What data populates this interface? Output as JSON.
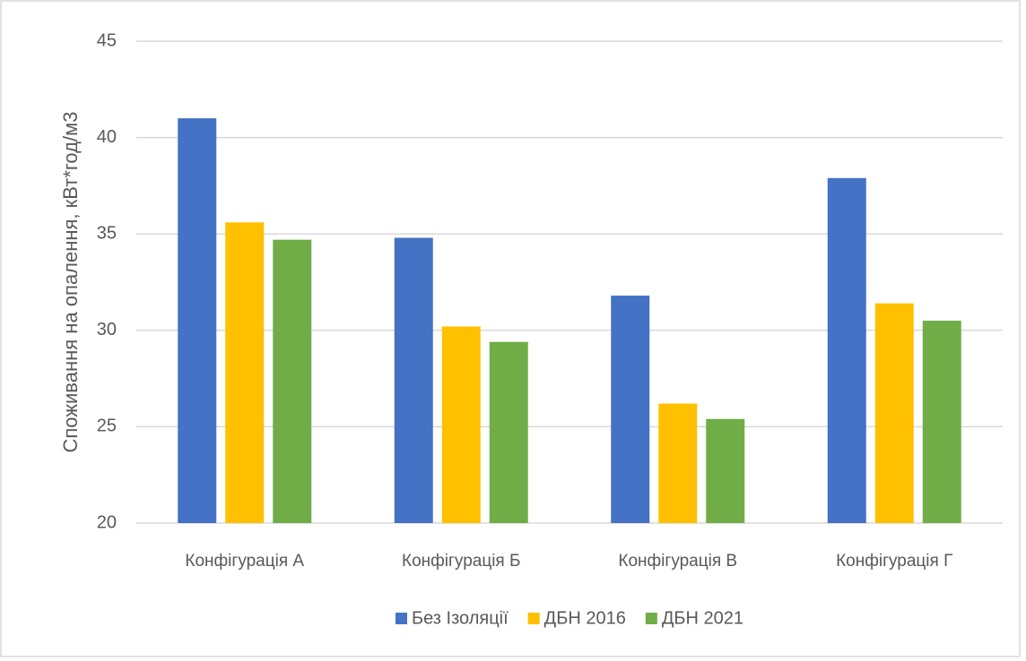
{
  "chart_data": {
    "type": "bar",
    "y_label": "Споживання на опалення, кВт*год/м3",
    "categories": [
      "Конфігурація А",
      "Конфігурація Б",
      "Конфігурація В",
      "Конфігурація Г"
    ],
    "series": [
      {
        "name": "Без Ізоляції",
        "color": "#4472c4",
        "values": [
          41.0,
          34.8,
          31.8,
          37.9
        ]
      },
      {
        "name": "ДБН 2016",
        "color": "#ffc000",
        "values": [
          35.6,
          30.2,
          26.2,
          31.4
        ]
      },
      {
        "name": "ДБН 2021",
        "color": "#70ad47",
        "values": [
          34.7,
          29.4,
          25.4,
          30.5
        ]
      }
    ],
    "ylim": [
      20,
      45
    ],
    "yticks": [
      20,
      25,
      30,
      35,
      40,
      45
    ],
    "grid": true,
    "legend": "bottom"
  }
}
